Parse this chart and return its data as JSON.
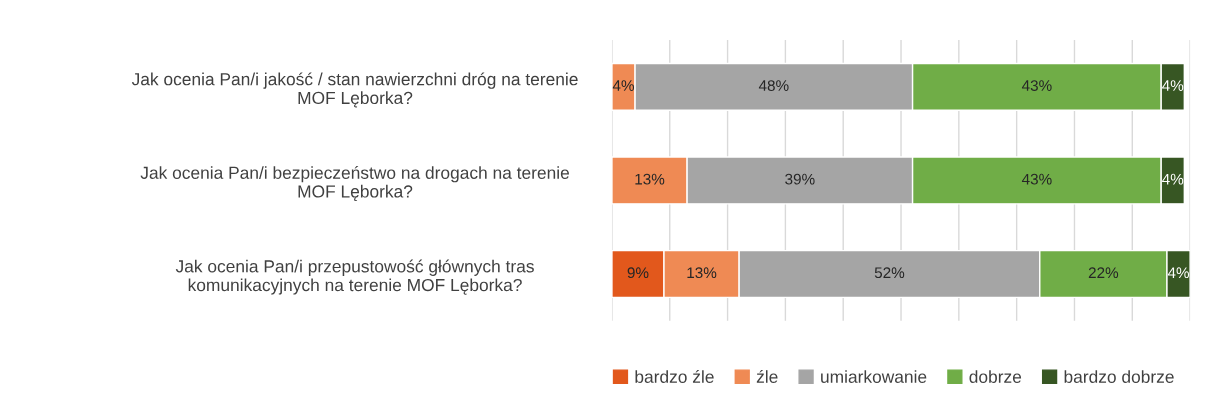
{
  "chart_data": {
    "type": "bar",
    "orientation": "horizontal",
    "stacked": true,
    "categories": [
      "Jak ocenia Pan/i jakość / stan nawierzchni dróg na terenie\nMOF Lęborka?",
      "Jak ocenia Pan/i bezpieczeństwo na drogach na terenie\nMOF Lęborka?",
      "Jak ocenia Pan/i przepustowość głównych tras\nkomunikacyjnych na terenie MOF Lęborka?"
    ],
    "series": [
      {
        "name": "bardzo źle",
        "color": "#e2581c",
        "values": [
          null,
          null,
          9
        ],
        "value_labels": [
          null,
          null,
          "9%"
        ]
      },
      {
        "name": "źle",
        "color": "#ef8a54",
        "values": [
          4,
          13,
          13
        ],
        "value_labels": [
          "4%",
          "13%",
          "13%"
        ]
      },
      {
        "name": "umiarkowanie",
        "color": "#a5a5a5",
        "values": [
          48,
          39,
          52
        ],
        "value_labels": [
          "48%",
          "39%",
          "52%"
        ]
      },
      {
        "name": "dobrze",
        "color": "#70ad47",
        "values": [
          43,
          43,
          22
        ],
        "value_labels": [
          "43%",
          "43%",
          "22%"
        ]
      },
      {
        "name": "bardzo dobrze",
        "color": "#375623",
        "values": [
          4,
          4,
          4
        ],
        "value_labels": [
          "4%",
          "4%",
          "4%"
        ]
      }
    ],
    "xlim": [
      0,
      100
    ],
    "xticks": [
      {
        "value": 0,
        "label": null
      },
      {
        "value": 10,
        "label": null
      },
      {
        "value": 20,
        "label": null
      },
      {
        "value": 30,
        "label": null
      },
      {
        "value": 40,
        "label": null
      },
      {
        "value": 50,
        "label": null
      },
      {
        "value": 60,
        "label": null
      },
      {
        "value": 70,
        "label": null
      },
      {
        "value": 80,
        "label": null
      },
      {
        "value": 90,
        "label": null
      },
      {
        "value": 100,
        "label": null
      }
    ],
    "tick_labels": "y",
    "grid": "x",
    "legend": "bottom"
  }
}
